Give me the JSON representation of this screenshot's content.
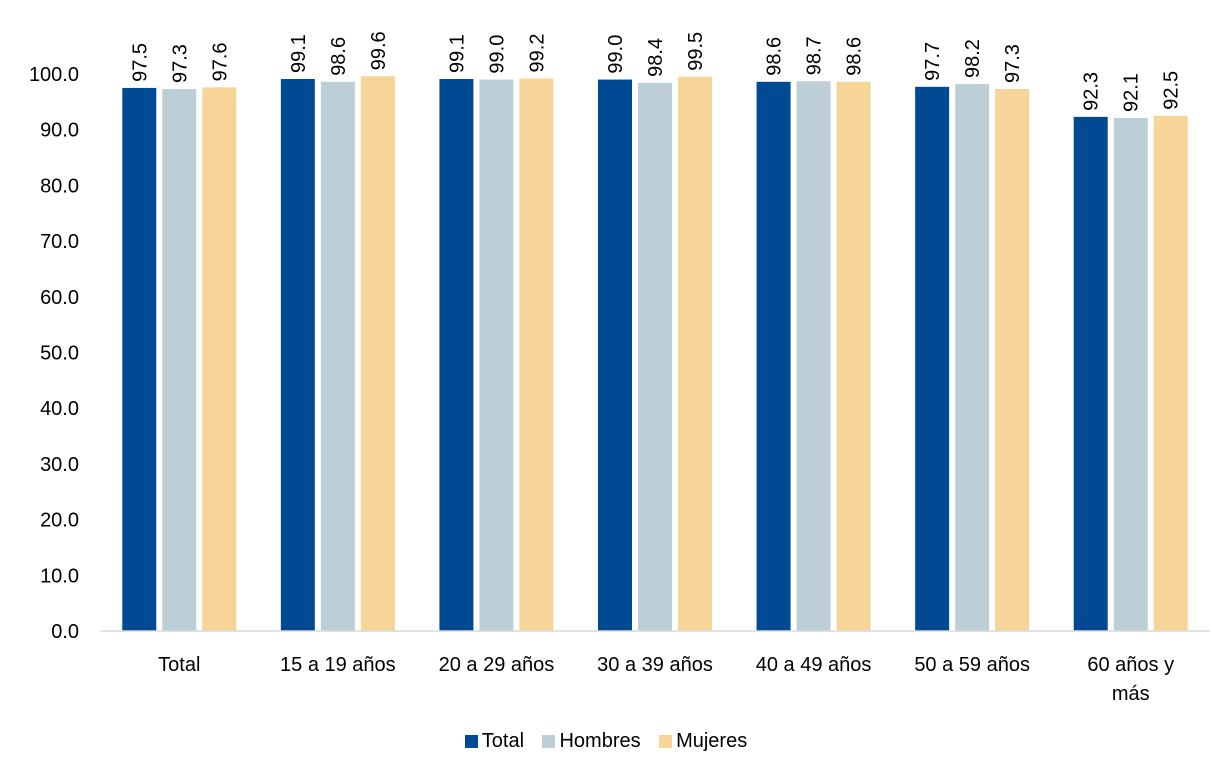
{
  "chart_data": {
    "type": "bar",
    "categories": [
      [
        "Total"
      ],
      [
        "15 a 19 años"
      ],
      [
        "20 a 29 años"
      ],
      [
        "30 a 39 años"
      ],
      [
        "40 a 49 años"
      ],
      [
        "50 a 59 años"
      ],
      [
        "60 años y",
        "más"
      ]
    ],
    "series": [
      {
        "name": "Total",
        "color": "#004A93",
        "values": [
          97.5,
          99.1,
          99.1,
          99.0,
          98.6,
          97.7,
          92.3
        ],
        "labels": [
          "97.5",
          "99.1",
          "99.1",
          "99.0",
          "98.6",
          "97.7",
          "92.3"
        ]
      },
      {
        "name": "Hombres",
        "color": "#BDCFD6",
        "values": [
          97.3,
          98.6,
          99.0,
          98.4,
          98.7,
          98.2,
          92.1
        ],
        "labels": [
          "97.3",
          "98.6",
          "99.0",
          "98.4",
          "98.7",
          "98.2",
          "92.1"
        ]
      },
      {
        "name": "Mujeres",
        "color": "#F7D497",
        "values": [
          97.6,
          99.6,
          99.2,
          99.5,
          98.6,
          97.3,
          92.5
        ],
        "labels": [
          "97.6",
          "99.6",
          "99.2",
          "99.5",
          "98.6",
          "97.3",
          "92.5"
        ]
      }
    ],
    "yticks": [
      "0.0",
      "10.0",
      "20.0",
      "30.0",
      "40.0",
      "50.0",
      "60.0",
      "70.0",
      "80.0",
      "90.0",
      "100.0"
    ],
    "ylim": [
      0,
      100
    ],
    "title": "",
    "xlabel": "",
    "ylabel": "",
    "grid": false,
    "legend_position": "bottom"
  }
}
